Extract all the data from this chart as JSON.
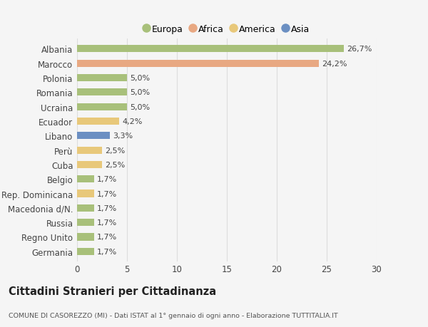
{
  "countries": [
    "Albania",
    "Marocco",
    "Polonia",
    "Romania",
    "Ucraina",
    "Ecuador",
    "Libano",
    "Perù",
    "Cuba",
    "Belgio",
    "Rep. Dominicana",
    "Macedonia d/N.",
    "Russia",
    "Regno Unito",
    "Germania"
  ],
  "values": [
    26.7,
    24.2,
    5.0,
    5.0,
    5.0,
    4.2,
    3.3,
    2.5,
    2.5,
    1.7,
    1.7,
    1.7,
    1.7,
    1.7,
    1.7
  ],
  "labels": [
    "26,7%",
    "24,2%",
    "5,0%",
    "5,0%",
    "5,0%",
    "4,2%",
    "3,3%",
    "2,5%",
    "2,5%",
    "1,7%",
    "1,7%",
    "1,7%",
    "1,7%",
    "1,7%",
    "1,7%"
  ],
  "colors": [
    "#a8c07a",
    "#e8a882",
    "#a8c07a",
    "#a8c07a",
    "#a8c07a",
    "#e8c87a",
    "#6b8fc2",
    "#e8c87a",
    "#e8c87a",
    "#a8c07a",
    "#e8c87a",
    "#a8c07a",
    "#a8c07a",
    "#a8c07a",
    "#a8c07a"
  ],
  "categories": [
    "Europa",
    "Africa",
    "America",
    "Asia"
  ],
  "legend_colors": [
    "#a8c07a",
    "#e8a882",
    "#e8c87a",
    "#6b8fc2"
  ],
  "title": "Cittadini Stranieri per Cittadinanza",
  "subtitle": "COMUNE DI CASOREZZO (MI) - Dati ISTAT al 1° gennaio di ogni anno - Elaborazione TUTTITALIA.IT",
  "xlim": [
    0,
    30
  ],
  "xticks": [
    0,
    5,
    10,
    15,
    20,
    25,
    30
  ],
  "background_color": "#f5f5f5",
  "grid_color": "#dddddd",
  "bar_height": 0.5
}
